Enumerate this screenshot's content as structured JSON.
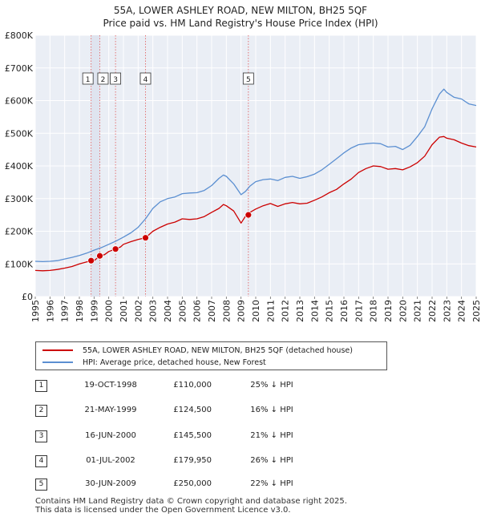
{
  "chart_data": {
    "type": "line",
    "title": "55A, LOWER ASHLEY ROAD, NEW MILTON, BH25 5QF",
    "subtitle": "Price paid vs. HM Land Registry's House Price Index (HPI)",
    "xlim": [
      1995,
      2025
    ],
    "ylim": [
      0,
      800000
    ],
    "x_ticks": [
      "1995",
      "1996",
      "1997",
      "1998",
      "1999",
      "2000",
      "2001",
      "2002",
      "2003",
      "2004",
      "2005",
      "2006",
      "2007",
      "2008",
      "2009",
      "2010",
      "2011",
      "2012",
      "2013",
      "2014",
      "2015",
      "2016",
      "2017",
      "2018",
      "2019",
      "2020",
      "2021",
      "2022",
      "2023",
      "2024",
      "2025"
    ],
    "y_ticks": [
      {
        "value": 0,
        "label": "£0"
      },
      {
        "value": 100000,
        "label": "£100K"
      },
      {
        "value": 200000,
        "label": "£200K"
      },
      {
        "value": 300000,
        "label": "£300K"
      },
      {
        "value": 400000,
        "label": "£400K"
      },
      {
        "value": 500000,
        "label": "£500K"
      },
      {
        "value": 600000,
        "label": "£600K"
      },
      {
        "value": 700000,
        "label": "£700K"
      },
      {
        "value": 800000,
        "label": "£800K"
      }
    ],
    "series": [
      {
        "name": "55A, LOWER ASHLEY ROAD, NEW MILTON, BH25 5QF (detached house)",
        "color": "#cc0000",
        "x": [
          1995.0,
          1995.5,
          1996.0,
          1996.5,
          1997.0,
          1997.5,
          1998.0,
          1998.5,
          1998.8,
          1999.0,
          1999.4,
          1999.7,
          2000.0,
          2000.46,
          2000.8,
          2001.0,
          2001.5,
          2002.0,
          2002.5,
          2003.0,
          2003.5,
          2004.0,
          2004.5,
          2005.0,
          2005.5,
          2006.0,
          2006.5,
          2007.0,
          2007.5,
          2007.8,
          2008.0,
          2008.5,
          2008.8,
          2009.0,
          2009.3,
          2009.5,
          2010.0,
          2010.5,
          2011.0,
          2011.5,
          2012.0,
          2012.5,
          2013.0,
          2013.5,
          2014.0,
          2014.5,
          2015.0,
          2015.5,
          2016.0,
          2016.5,
          2017.0,
          2017.5,
          2018.0,
          2018.5,
          2019.0,
          2019.5,
          2020.0,
          2020.5,
          2021.0,
          2021.5,
          2022.0,
          2022.5,
          2022.8,
          2023.0,
          2023.5,
          2024.0,
          2024.5,
          2025.0
        ],
        "values": [
          80000,
          79000,
          80000,
          83000,
          87000,
          92000,
          100000,
          106000,
          110000,
          110000,
          124500,
          128000,
          138000,
          145500,
          152000,
          160000,
          168000,
          175000,
          180000,
          200000,
          212000,
          222000,
          228000,
          238000,
          236000,
          238000,
          245000,
          258000,
          270000,
          282000,
          278000,
          262000,
          240000,
          225000,
          246000,
          255000,
          268000,
          278000,
          285000,
          276000,
          284000,
          288000,
          284000,
          286000,
          295000,
          305000,
          318000,
          328000,
          345000,
          360000,
          380000,
          392000,
          400000,
          398000,
          390000,
          392000,
          388000,
          397000,
          410000,
          430000,
          465000,
          488000,
          490000,
          485000,
          480000,
          470000,
          462000,
          458000
        ]
      },
      {
        "name": "HPI: Average price, detached house, New Forest",
        "color": "#5b8fd1",
        "x": [
          1995.0,
          1995.5,
          1996.0,
          1996.5,
          1997.0,
          1997.5,
          1998.0,
          1998.5,
          1999.0,
          1999.5,
          2000.0,
          2000.5,
          2001.0,
          2001.5,
          2002.0,
          2002.5,
          2003.0,
          2003.5,
          2004.0,
          2004.5,
          2005.0,
          2005.5,
          2006.0,
          2006.5,
          2007.0,
          2007.5,
          2007.8,
          2008.0,
          2008.5,
          2009.0,
          2009.3,
          2009.6,
          2010.0,
          2010.5,
          2011.0,
          2011.5,
          2012.0,
          2012.5,
          2013.0,
          2013.5,
          2014.0,
          2014.5,
          2015.0,
          2015.5,
          2016.0,
          2016.5,
          2017.0,
          2017.5,
          2018.0,
          2018.5,
          2019.0,
          2019.5,
          2020.0,
          2020.5,
          2021.0,
          2021.5,
          2022.0,
          2022.5,
          2022.8,
          2023.0,
          2023.5,
          2024.0,
          2024.5,
          2025.0
        ],
        "values": [
          108000,
          107000,
          108000,
          110000,
          115000,
          120000,
          126000,
          133000,
          142000,
          150000,
          160000,
          170000,
          182000,
          195000,
          212000,
          238000,
          270000,
          290000,
          300000,
          305000,
          315000,
          317000,
          318000,
          325000,
          340000,
          362000,
          372000,
          368000,
          345000,
          312000,
          322000,
          338000,
          352000,
          358000,
          360000,
          355000,
          365000,
          368000,
          362000,
          367000,
          375000,
          388000,
          405000,
          422000,
          440000,
          455000,
          465000,
          468000,
          470000,
          468000,
          458000,
          460000,
          450000,
          463000,
          490000,
          520000,
          575000,
          620000,
          635000,
          625000,
          610000,
          605000,
          590000,
          585000
        ]
      }
    ],
    "sale_points": [
      {
        "id": "1",
        "x": 1998.8,
        "value": 110000
      },
      {
        "id": "2",
        "x": 1999.39,
        "value": 124500
      },
      {
        "id": "3",
        "x": 2000.46,
        "value": 145500
      },
      {
        "id": "4",
        "x": 2002.5,
        "value": 179950
      },
      {
        "id": "5",
        "x": 2009.5,
        "value": 250000
      }
    ]
  },
  "legend": {
    "property_label": "55A, LOWER ASHLEY ROAD, NEW MILTON, BH25 5QF (detached house)",
    "hpi_label": "HPI: Average price, detached house, New Forest",
    "property_color": "#cc0000",
    "hpi_color": "#5b8fd1"
  },
  "transactions": [
    {
      "id": "1",
      "date": "19-OCT-1998",
      "price": "£110,000",
      "hpi": "25% ↓ HPI"
    },
    {
      "id": "2",
      "date": "21-MAY-1999",
      "price": "£124,500",
      "hpi": "16% ↓ HPI"
    },
    {
      "id": "3",
      "date": "16-JUN-2000",
      "price": "£145,500",
      "hpi": "21% ↓ HPI"
    },
    {
      "id": "4",
      "date": "01-JUL-2002",
      "price": "£179,950",
      "hpi": "26% ↓ HPI"
    },
    {
      "id": "5",
      "date": "30-JUN-2009",
      "price": "£250,000",
      "hpi": "22% ↓ HPI"
    }
  ],
  "footer": {
    "line1": "Contains HM Land Registry data © Crown copyright and database right 2025.",
    "line2": "This data is licensed under the Open Government Licence v3.0."
  }
}
